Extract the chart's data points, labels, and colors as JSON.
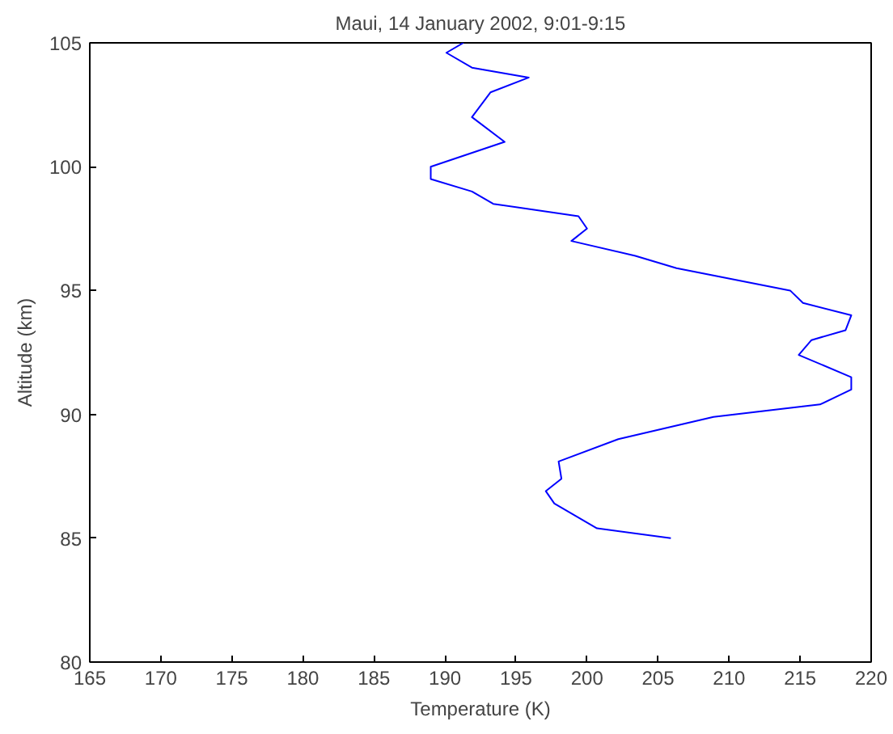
{
  "chart_data": {
    "type": "line",
    "title": "Maui, 14 January 2002, 9:01-9:15",
    "xlabel": "Temperature (K)",
    "ylabel": "Altitude (km)",
    "series": [
      {
        "color": "#0000ff",
        "x": [
          191.3,
          190.1,
          191.9,
          195.9,
          193.2,
          191.9,
          194.2,
          189.0,
          189.0,
          191.9,
          193.4,
          199.4,
          200.0,
          198.9,
          203.4,
          206.3,
          214.3,
          215.2,
          218.6,
          218.2,
          215.8,
          214.9,
          218.6,
          218.6,
          216.4,
          208.9,
          202.2,
          198.0,
          198.2,
          197.1,
          197.7,
          200.7,
          205.9
        ],
        "values": [
          105.0,
          104.6,
          104.0,
          103.6,
          103.0,
          102.0,
          101.0,
          100.0,
          99.5,
          99.0,
          98.5,
          98.0,
          97.5,
          97.0,
          96.4,
          95.9,
          95.0,
          94.5,
          94.0,
          93.4,
          93.0,
          92.4,
          91.5,
          91.0,
          90.4,
          89.9,
          89.0,
          88.1,
          87.4,
          86.9,
          86.4,
          85.4,
          85.0
        ]
      }
    ],
    "xlim": [
      165,
      220
    ],
    "xticks": [
      165,
      170,
      175,
      180,
      185,
      190,
      195,
      200,
      205,
      210,
      215,
      220
    ],
    "ylim": [
      80,
      105
    ],
    "yticks": [
      80,
      85,
      90,
      95,
      100,
      105
    ],
    "grid": false,
    "line_style": "solid"
  }
}
